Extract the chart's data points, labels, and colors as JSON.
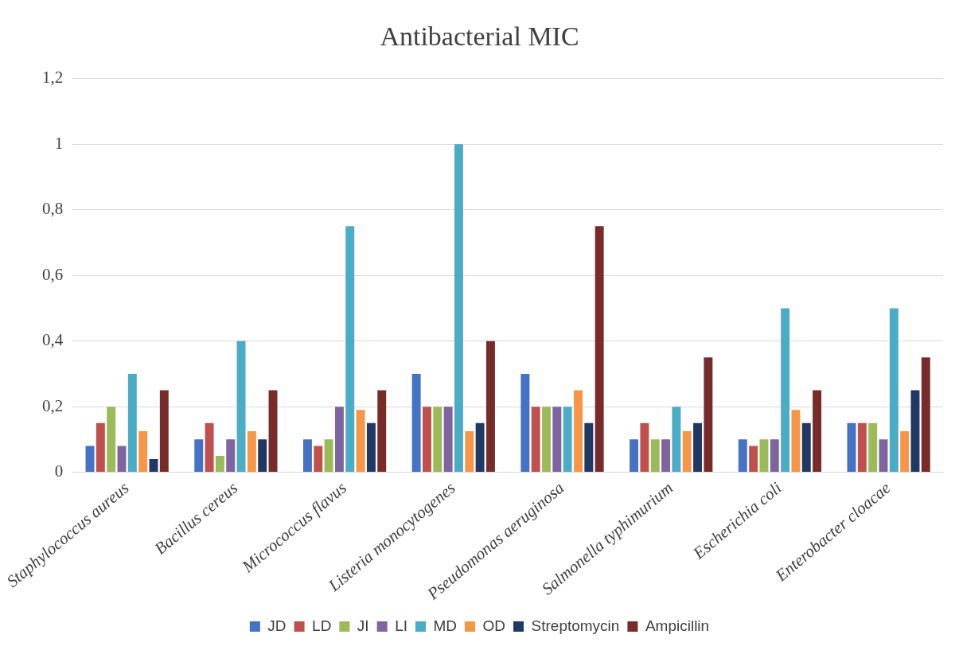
{
  "chart_data": {
    "type": "bar",
    "title": "Antibacterial MIC",
    "categories": [
      "Staphylococcus aureus",
      "Bacillus cereus",
      "Micrococcus flavus",
      "Listeria monocytogenes",
      "Pseudomonas aeruginosa",
      "Salmonella typhimurium",
      "Escherichia coli",
      "Enterobacter cloacae"
    ],
    "series": [
      {
        "name": "JD",
        "color": "#4472c4",
        "values": [
          0.08,
          0.1,
          0.1,
          0.3,
          0.3,
          0.1,
          0.1,
          0.15
        ]
      },
      {
        "name": "LD",
        "color": "#c0504d",
        "values": [
          0.15,
          0.15,
          0.08,
          0.2,
          0.2,
          0.15,
          0.08,
          0.15
        ]
      },
      {
        "name": "JI",
        "color": "#9bbb59",
        "values": [
          0.2,
          0.05,
          0.1,
          0.2,
          0.2,
          0.1,
          0.1,
          0.15
        ]
      },
      {
        "name": "LI",
        "color": "#8064a2",
        "values": [
          0.08,
          0.1,
          0.2,
          0.2,
          0.2,
          0.1,
          0.1,
          0.1
        ]
      },
      {
        "name": "MD",
        "color": "#4bacc6",
        "values": [
          0.3,
          0.4,
          0.75,
          1,
          0.2,
          0.2,
          0.5,
          0.5
        ]
      },
      {
        "name": "OD",
        "color": "#f79646",
        "values": [
          0.125,
          0.125,
          0.19,
          0.125,
          0.25,
          0.125,
          0.19,
          0.125
        ]
      },
      {
        "name": "Streptomycin",
        "color": "#1f3864",
        "values": [
          0.04,
          0.1,
          0.15,
          0.15,
          0.15,
          0.15,
          0.15,
          0.25
        ]
      },
      {
        "name": "Ampicillin",
        "color": "#772c2a",
        "values": [
          0.25,
          0.25,
          0.25,
          0.4,
          0.75,
          0.35,
          0.25,
          0.35
        ]
      }
    ],
    "ylim": [
      0,
      1.2
    ],
    "yticks": [
      0,
      {
        "value": 0.2,
        "label": "0,2"
      },
      {
        "value": 0.4,
        "label": "0,4"
      },
      {
        "value": 0.6,
        "label": "0,6"
      },
      {
        "value": 0.8,
        "label": "0,8"
      },
      1,
      {
        "value": 1.2,
        "label": "1,2"
      }
    ],
    "grid": "y",
    "legend": "bottom"
  }
}
